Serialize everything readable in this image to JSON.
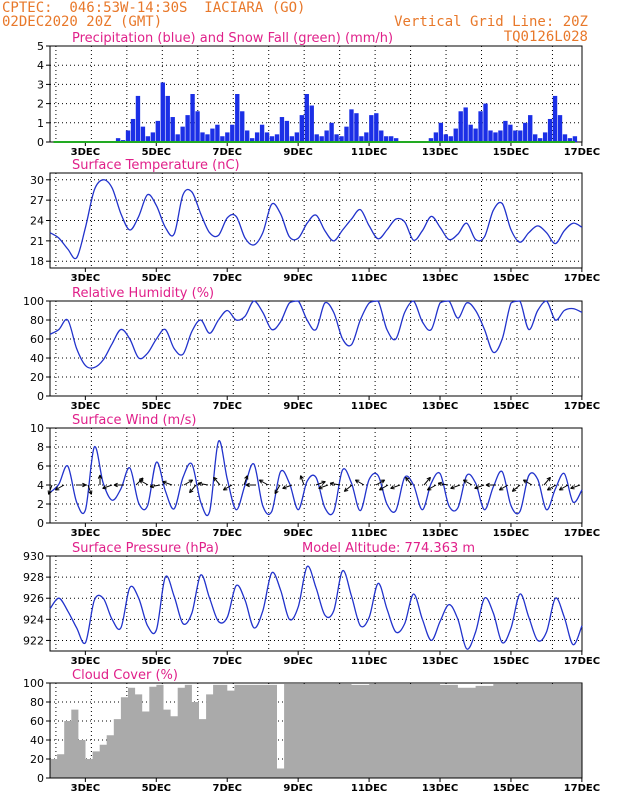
{
  "header": {
    "line1": "CPTEC:  046:53W-14:30S  IACIARA (GO)",
    "line2": "02DEC2020 20Z (GMT)",
    "grid_note": "Vertical Grid Line: 20Z",
    "run_code": "TQ0126L028"
  },
  "colors": {
    "header": "#e8782a",
    "title": "#e0208a",
    "line": "#2233cc",
    "precip_bar": "#1b2fe6",
    "snow": "#22aa22",
    "cloud": "#aaaaaa"
  },
  "chart_data": [
    {
      "type": "bar",
      "title": "Precipitation (blue) and Snow Fall (green) (mm/h)",
      "ylim": [
        0,
        5
      ],
      "yticks": [
        0,
        1,
        2,
        3,
        4,
        5
      ],
      "xticks": [
        "3DEC",
        "5DEC",
        "7DEC",
        "9DEC",
        "11DEC",
        "13DEC",
        "15DEC",
        "17DEC"
      ],
      "x_days": [
        0.1,
        0.24,
        0.38,
        0.52,
        0.66,
        0.8,
        0.94,
        1.08,
        1.22,
        1.36,
        1.5,
        1.64,
        1.78,
        1.92,
        2.06,
        2.2,
        2.34,
        2.48,
        2.62,
        2.76,
        2.9,
        3.04,
        3.18,
        3.32,
        3.46,
        3.6,
        3.74,
        3.88,
        4.02,
        4.16,
        4.3,
        4.44,
        4.58,
        4.72,
        4.86,
        5.0,
        5.14,
        5.28,
        5.42,
        5.56,
        5.7,
        5.84,
        5.98,
        6.12,
        6.26,
        6.4,
        6.54,
        6.68,
        6.82,
        6.96,
        7.1,
        7.24,
        7.38,
        7.52,
        7.66,
        7.8,
        7.94,
        8.08,
        8.22,
        8.36,
        8.5,
        8.64,
        8.78,
        8.92,
        9.06,
        9.2,
        9.34,
        9.48,
        9.62,
        9.76,
        9.9,
        10.04,
        10.18,
        10.32,
        10.46,
        10.6,
        10.74,
        10.88,
        11.02,
        11.16,
        11.3,
        11.44,
        11.58,
        11.72,
        11.86,
        12.0,
        12.14,
        12.28,
        12.42,
        12.56,
        12.7,
        12.84,
        12.98,
        13.12,
        13.26,
        13.4,
        13.54,
        13.68,
        13.82,
        13.96,
        14.1,
        14.24,
        14.38,
        14.52,
        14.66,
        14.8
      ],
      "series": [
        {
          "name": "Precipitation",
          "values": [
            0.0,
            0.0,
            0.0,
            0.0,
            0.0,
            0.0,
            0.0,
            0.0,
            0.0,
            0.0,
            0.0,
            0.0,
            0.0,
            0.2,
            0.1,
            0.6,
            1.2,
            2.4,
            0.8,
            0.3,
            0.5,
            1.1,
            3.1,
            2.4,
            1.3,
            0.4,
            0.8,
            1.4,
            2.5,
            1.6,
            0.5,
            0.4,
            0.7,
            0.9,
            0.3,
            0.5,
            0.9,
            2.5,
            1.6,
            0.6,
            0.2,
            0.5,
            0.9,
            0.5,
            0.3,
            0.4,
            1.3,
            1.1,
            0.3,
            0.5,
            1.4,
            2.5,
            1.9,
            0.4,
            0.3,
            0.6,
            1.0,
            0.4,
            0.3,
            0.8,
            1.7,
            1.5,
            0.3,
            0.5,
            1.4,
            1.5,
            0.6,
            0.3,
            0.3,
            0.2,
            0.0,
            0.0,
            0.0,
            0.0,
            0.0,
            0.0,
            0.2,
            0.5,
            1.0,
            0.4,
            0.3,
            0.7,
            1.6,
            1.8,
            0.9,
            0.7,
            1.6,
            2.0,
            0.6,
            0.5,
            0.6,
            1.1,
            0.9,
            0.6,
            0.6,
            1.0,
            1.4,
            0.4,
            0.2,
            0.5,
            1.2,
            2.4,
            1.4,
            0.4,
            0.2,
            0.3
          ]
        },
        {
          "name": "Snow Fall",
          "values": [
            0,
            0,
            0,
            0,
            0,
            0,
            0,
            0,
            0,
            0,
            0,
            0,
            0,
            0,
            0,
            0,
            0,
            0,
            0,
            0,
            0,
            0,
            0,
            0,
            0,
            0,
            0,
            0,
            0,
            0,
            0,
            0,
            0,
            0,
            0,
            0,
            0,
            0,
            0,
            0,
            0,
            0,
            0,
            0,
            0,
            0,
            0,
            0,
            0,
            0,
            0,
            0,
            0,
            0,
            0,
            0,
            0,
            0,
            0,
            0,
            0,
            0,
            0,
            0,
            0,
            0,
            0,
            0,
            0,
            0,
            0,
            0,
            0,
            0,
            0,
            0,
            0,
            0,
            0,
            0,
            0,
            0,
            0,
            0,
            0,
            0,
            0,
            0,
            0,
            0,
            0,
            0,
            0,
            0,
            0,
            0,
            0,
            0,
            0,
            0,
            0,
            0,
            0,
            0,
            0,
            0
          ]
        }
      ]
    },
    {
      "type": "line",
      "title": "Surface Temperature (nC)",
      "ylim": [
        17,
        31
      ],
      "yticks": [
        18,
        21,
        24,
        27,
        30
      ],
      "xticks": [
        "3DEC",
        "5DEC",
        "7DEC",
        "9DEC",
        "11DEC",
        "13DEC",
        "15DEC",
        "17DEC"
      ],
      "x_days": [
        0.0,
        0.25,
        0.5,
        0.75,
        1.0,
        1.25,
        1.5,
        1.75,
        2.0,
        2.25,
        2.5,
        2.75,
        3.0,
        3.25,
        3.5,
        3.75,
        4.0,
        4.25,
        4.5,
        4.75,
        5.0,
        5.25,
        5.5,
        5.75,
        6.0,
        6.25,
        6.5,
        6.75,
        7.0,
        7.25,
        7.5,
        7.75,
        8.0,
        8.25,
        8.5,
        8.75,
        9.0,
        9.25,
        9.5,
        9.75,
        10.0,
        10.25,
        10.5,
        10.75,
        11.0,
        11.25,
        11.5,
        11.75,
        12.0,
        12.25,
        12.5,
        12.75,
        13.0,
        13.25,
        13.5,
        13.75,
        14.0,
        14.25,
        14.5,
        14.75,
        15.0
      ],
      "series": [
        {
          "name": "Surface Temperature",
          "values": [
            22.2,
            21.4,
            19.8,
            18.5,
            23.0,
            28.5,
            30.0,
            28.8,
            25.0,
            22.6,
            24.6,
            27.8,
            26.2,
            23.0,
            22.0,
            27.8,
            28.2,
            25.0,
            22.2,
            21.8,
            24.4,
            24.6,
            21.4,
            20.4,
            22.2,
            26.4,
            25.0,
            21.6,
            21.4,
            23.6,
            24.8,
            22.5,
            21.0,
            22.6,
            24.2,
            25.6,
            23.2,
            21.3,
            22.6,
            24.2,
            23.8,
            21.1,
            22.5,
            24.6,
            23.0,
            21.2,
            22.0,
            23.6,
            21.2,
            21.6,
            25.5,
            26.5,
            22.6,
            20.8,
            22.2,
            23.2,
            22.2,
            20.6,
            22.5,
            23.6,
            23.0
          ]
        }
      ]
    },
    {
      "type": "line",
      "title": "Relative Humidity (%)",
      "ylim": [
        0,
        100
      ],
      "yticks": [
        0,
        20,
        40,
        60,
        80,
        100
      ],
      "xticks": [
        "3DEC",
        "5DEC",
        "7DEC",
        "9DEC",
        "11DEC",
        "13DEC",
        "15DEC",
        "17DEC"
      ],
      "x_days": [
        0.0,
        0.25,
        0.5,
        0.75,
        1.0,
        1.25,
        1.5,
        1.75,
        2.0,
        2.25,
        2.5,
        2.75,
        3.0,
        3.25,
        3.5,
        3.75,
        4.0,
        4.25,
        4.5,
        4.75,
        5.0,
        5.25,
        5.5,
        5.75,
        6.0,
        6.25,
        6.5,
        6.75,
        7.0,
        7.25,
        7.5,
        7.75,
        8.0,
        8.25,
        8.5,
        8.75,
        9.0,
        9.25,
        9.5,
        9.75,
        10.0,
        10.25,
        10.5,
        10.75,
        11.0,
        11.25,
        11.5,
        11.75,
        12.0,
        12.25,
        12.5,
        12.75,
        13.0,
        13.25,
        13.5,
        13.75,
        14.0,
        14.25,
        14.5,
        14.75,
        15.0
      ],
      "series": [
        {
          "name": "Relative Humidity",
          "values": [
            65,
            70,
            80,
            50,
            32,
            30,
            38,
            55,
            70,
            60,
            40,
            45,
            60,
            70,
            50,
            44,
            68,
            80,
            66,
            80,
            90,
            80,
            84,
            100,
            88,
            70,
            78,
            98,
            100,
            80,
            70,
            98,
            88,
            60,
            54,
            80,
            98,
            100,
            70,
            60,
            88,
            100,
            78,
            70,
            98,
            100,
            82,
            98,
            90,
            70,
            46,
            60,
            98,
            100,
            70,
            90,
            100,
            80,
            90,
            92,
            88
          ]
        }
      ]
    },
    {
      "type": "line",
      "title": "Surface Wind (m/s)",
      "ylim": [
        0,
        10
      ],
      "yticks": [
        0,
        2,
        4,
        6,
        8,
        10
      ],
      "xticks": [
        "3DEC",
        "5DEC",
        "7DEC",
        "9DEC",
        "11DEC",
        "13DEC",
        "15DEC",
        "17DEC"
      ],
      "x_days": [
        0.0,
        0.25,
        0.5,
        0.75,
        1.0,
        1.25,
        1.5,
        1.75,
        2.0,
        2.25,
        2.5,
        2.75,
        3.0,
        3.25,
        3.5,
        3.75,
        4.0,
        4.25,
        4.5,
        4.75,
        5.0,
        5.25,
        5.5,
        5.75,
        6.0,
        6.25,
        6.5,
        6.75,
        7.0,
        7.25,
        7.5,
        7.75,
        8.0,
        8.25,
        8.5,
        8.75,
        9.0,
        9.25,
        9.5,
        9.75,
        10.0,
        10.25,
        10.5,
        10.75,
        11.0,
        11.25,
        11.5,
        11.75,
        12.0,
        12.25,
        12.5,
        12.75,
        13.0,
        13.25,
        13.5,
        13.75,
        14.0,
        14.25,
        14.5,
        14.75,
        15.0
      ],
      "series": [
        {
          "name": "Surface Wind",
          "values": [
            3.2,
            4.1,
            6.0,
            2.2,
            1.4,
            8.0,
            4.2,
            2.4,
            3.6,
            5.8,
            2.1,
            1.8,
            6.4,
            3.4,
            1.5,
            4.8,
            6.2,
            2.2,
            1.2,
            8.6,
            4.6,
            1.4,
            4.0,
            6.2,
            1.8,
            1.2,
            5.4,
            4.2,
            1.4,
            4.4,
            4.8,
            1.6,
            1.2,
            5.6,
            4.2,
            1.3,
            4.6,
            5.0,
            2.0,
            1.3,
            4.8,
            4.0,
            1.4,
            4.2,
            5.2,
            1.8,
            1.6,
            5.0,
            4.2,
            1.4,
            3.8,
            5.4,
            1.8,
            1.2,
            5.0,
            4.6,
            1.4,
            3.6,
            5.2,
            2.2,
            3.5
          ]
        }
      ],
      "wind_directions_deg": [
        200,
        240,
        90,
        160,
        0,
        250,
        270,
        45,
        300,
        260,
        290,
        60,
        220,
        280,
        320,
        240,
        20,
        270,
        300,
        210,
        250,
        340,
        70,
        250,
        280,
        230,
        300,
        60,
        240,
        250,
        320,
        40,
        240,
        280,
        250,
        300,
        250,
        270,
        240,
        230,
        300,
        40,
        240,
        240,
        250
      ]
    },
    {
      "type": "line",
      "title": "Surface Pressure (hPa)",
      "annotation": "Model Altitude: 774.363 m",
      "ylim": [
        921,
        930
      ],
      "yticks": [
        922,
        924,
        926,
        928,
        930
      ],
      "xticks": [
        "3DEC",
        "5DEC",
        "7DEC",
        "9DEC",
        "11DEC",
        "13DEC",
        "15DEC",
        "17DEC"
      ],
      "x_days": [
        0.0,
        0.25,
        0.5,
        0.75,
        1.0,
        1.25,
        1.5,
        1.75,
        2.0,
        2.25,
        2.5,
        2.75,
        3.0,
        3.25,
        3.5,
        3.75,
        4.0,
        4.25,
        4.5,
        4.75,
        5.0,
        5.25,
        5.5,
        5.75,
        6.0,
        6.25,
        6.5,
        6.75,
        7.0,
        7.25,
        7.5,
        7.75,
        8.0,
        8.25,
        8.5,
        8.75,
        9.0,
        9.25,
        9.5,
        9.75,
        10.0,
        10.25,
        10.5,
        10.75,
        11.0,
        11.25,
        11.5,
        11.75,
        12.0,
        12.25,
        12.5,
        12.75,
        13.0,
        13.25,
        13.5,
        13.75,
        14.0,
        14.25,
        14.5,
        14.75,
        15.0
      ],
      "series": [
        {
          "name": "Surface Pressure",
          "values": [
            925.0,
            926.0,
            924.8,
            923.2,
            921.8,
            925.8,
            926.0,
            924.0,
            923.2,
            927.0,
            926.0,
            923.4,
            923.0,
            928.0,
            926.2,
            923.6,
            924.6,
            928.2,
            926.0,
            923.8,
            924.2,
            927.2,
            925.8,
            923.2,
            924.8,
            928.4,
            926.8,
            924.0,
            925.2,
            929.0,
            927.0,
            924.4,
            924.8,
            928.6,
            926.2,
            923.4,
            924.2,
            927.4,
            925.0,
            922.8,
            923.6,
            926.4,
            924.0,
            922.0,
            923.8,
            925.4,
            924.0,
            921.2,
            922.8,
            926.0,
            924.6,
            921.8,
            923.2,
            926.4,
            924.2,
            922.0,
            922.8,
            926.0,
            924.2,
            921.6,
            923.4
          ]
        }
      ]
    },
    {
      "type": "area",
      "title": "Cloud Cover (%)",
      "ylim": [
        0,
        100
      ],
      "yticks": [
        0,
        20,
        40,
        60,
        80,
        100
      ],
      "xticks": [
        "3DEC",
        "5DEC",
        "7DEC",
        "9DEC",
        "11DEC",
        "13DEC",
        "15DEC",
        "17DEC"
      ],
      "x_days": [
        0.0,
        0.2,
        0.4,
        0.6,
        0.8,
        1.0,
        1.2,
        1.4,
        1.6,
        1.8,
        2.0,
        2.2,
        2.4,
        2.6,
        2.8,
        3.0,
        3.2,
        3.4,
        3.6,
        3.8,
        4.0,
        4.2,
        4.4,
        4.6,
        4.8,
        5.0,
        5.2,
        5.4,
        5.6,
        5.8,
        6.0,
        6.2,
        6.4,
        6.6,
        6.8,
        7.0,
        7.5,
        8.0,
        8.5,
        9.0,
        9.5,
        10.0,
        10.5,
        11.0,
        11.5,
        12.0,
        12.5,
        13.0,
        13.5,
        14.0,
        14.5,
        15.0
      ],
      "series": [
        {
          "name": "Cloud Cover",
          "values": [
            20,
            25,
            60,
            72,
            40,
            20,
            28,
            35,
            45,
            62,
            85,
            95,
            88,
            70,
            96,
            98,
            72,
            65,
            95,
            98,
            80,
            62,
            88,
            98,
            98,
            92,
            98,
            98,
            98,
            98,
            98,
            98,
            10,
            99,
            99,
            99,
            99,
            99,
            98,
            99,
            99,
            99,
            99,
            98,
            95,
            97,
            99,
            99,
            99,
            99,
            99,
            99
          ]
        }
      ]
    }
  ]
}
